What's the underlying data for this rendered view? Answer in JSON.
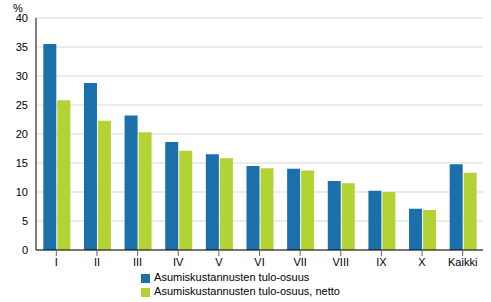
{
  "chart_data": {
    "type": "bar",
    "ylabel": "%",
    "categories": [
      "I",
      "II",
      "III",
      "IV",
      "V",
      "VI",
      "VII",
      "VIII",
      "IX",
      "X",
      "Kaikki"
    ],
    "series": [
      {
        "name": "Asumiskustannusten tulo-osuus",
        "color": "#1b6faa",
        "values": [
          35.5,
          28.8,
          23.2,
          18.6,
          16.5,
          14.5,
          14.0,
          11.9,
          10.2,
          7.1,
          14.8
        ]
      },
      {
        "name": "Asumiskustannusten tulo-osuus, netto",
        "color": "#b3d334",
        "values": [
          25.8,
          22.3,
          20.3,
          17.1,
          15.8,
          14.1,
          13.7,
          11.5,
          10.0,
          6.9,
          13.3
        ]
      }
    ],
    "ylim": [
      0,
      40
    ],
    "yticks": [
      0,
      5,
      10,
      15,
      20,
      25,
      30,
      35,
      40
    ],
    "grid": true,
    "legend": "bottom"
  }
}
